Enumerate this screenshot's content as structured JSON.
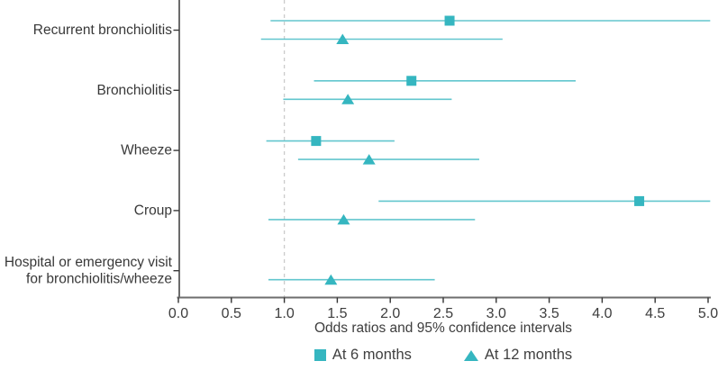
{
  "chart_data": {
    "type": "scatter",
    "subtype": "forest-plot",
    "title": "",
    "xlabel": "Odds ratios and 95% confidence intervals",
    "ylabel": "",
    "xlim": [
      0.0,
      5.0
    ],
    "xtick_labels": [
      "0.0",
      "0.5",
      "1.0",
      "1.5",
      "2.0",
      "2.5",
      "3.0",
      "3.5",
      "4.0",
      "4.5",
      "5.0"
    ],
    "grid": false,
    "reference_line_x": 1.0,
    "legend_position": "bottom",
    "categories": [
      "Recurrent bronchiolitis",
      "Bronchiolitis",
      "Wheeze",
      "Croup",
      "Hospital or emergency visit\nfor bronchiolitis/wheeze"
    ],
    "series": [
      {
        "name": "At 6 months",
        "marker": "square",
        "values": [
          {
            "or": 2.56,
            "ci_low": 0.87,
            "ci_high": 5.02
          },
          {
            "or": 2.2,
            "ci_low": 1.28,
            "ci_high": 3.75
          },
          {
            "or": 1.3,
            "ci_low": 0.83,
            "ci_high": 2.04
          },
          {
            "or": 4.35,
            "ci_low": 1.89,
            "ci_high": 5.02
          },
          null
        ]
      },
      {
        "name": "At 12 months",
        "marker": "triangle",
        "values": [
          {
            "or": 1.55,
            "ci_low": 0.78,
            "ci_high": 3.06
          },
          {
            "or": 1.6,
            "ci_low": 0.99,
            "ci_high": 2.58
          },
          {
            "or": 1.8,
            "ci_low": 1.13,
            "ci_high": 2.84
          },
          {
            "or": 1.56,
            "ci_low": 0.85,
            "ci_high": 2.8
          },
          {
            "or": 1.44,
            "ci_low": 0.85,
            "ci_high": 2.42
          }
        ]
      }
    ],
    "colors": {
      "marker": "#35b6c0",
      "ci_line": "#52c0c9",
      "reference_line": "#cbcbcb",
      "axis": "#4a4a4a",
      "text": "#3d3d3d"
    }
  }
}
